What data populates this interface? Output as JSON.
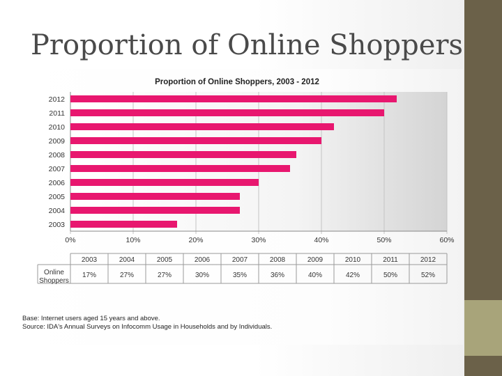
{
  "slide": {
    "title": "Proportion of Online Shoppers"
  },
  "chart_data": {
    "type": "bar",
    "orientation": "horizontal",
    "title": "Proportion of Online  Shoppers, 2003 - 2012",
    "categories": [
      "2012",
      "2011",
      "2010",
      "2009",
      "2008",
      "2007",
      "2006",
      "2005",
      "2004",
      "2003"
    ],
    "values": [
      52,
      50,
      42,
      40,
      36,
      35,
      30,
      27,
      27,
      17
    ],
    "xlim": [
      0,
      60
    ],
    "x_ticks": [
      "0%",
      "10%",
      "20%",
      "30%",
      "40%",
      "50%",
      "60%"
    ],
    "bar_color": "#e8176f",
    "grid": true,
    "table": {
      "row_label": [
        "Online",
        "Shoppers"
      ],
      "years": [
        "2003",
        "2004",
        "2005",
        "2006",
        "2007",
        "2008",
        "2009",
        "2010",
        "2011",
        "2012"
      ],
      "values": [
        "17%",
        "27%",
        "27%",
        "30%",
        "35%",
        "36%",
        "40%",
        "42%",
        "50%",
        "52%"
      ]
    }
  },
  "notes": {
    "base": "Base: Internet users aged 15 years and above.",
    "source": "Source: IDA's Annual Surveys on Infocomm Usage in Households and by Individuals."
  },
  "colors": {
    "side_bar": "#6b6149",
    "side_accent": "#a8a47a"
  }
}
